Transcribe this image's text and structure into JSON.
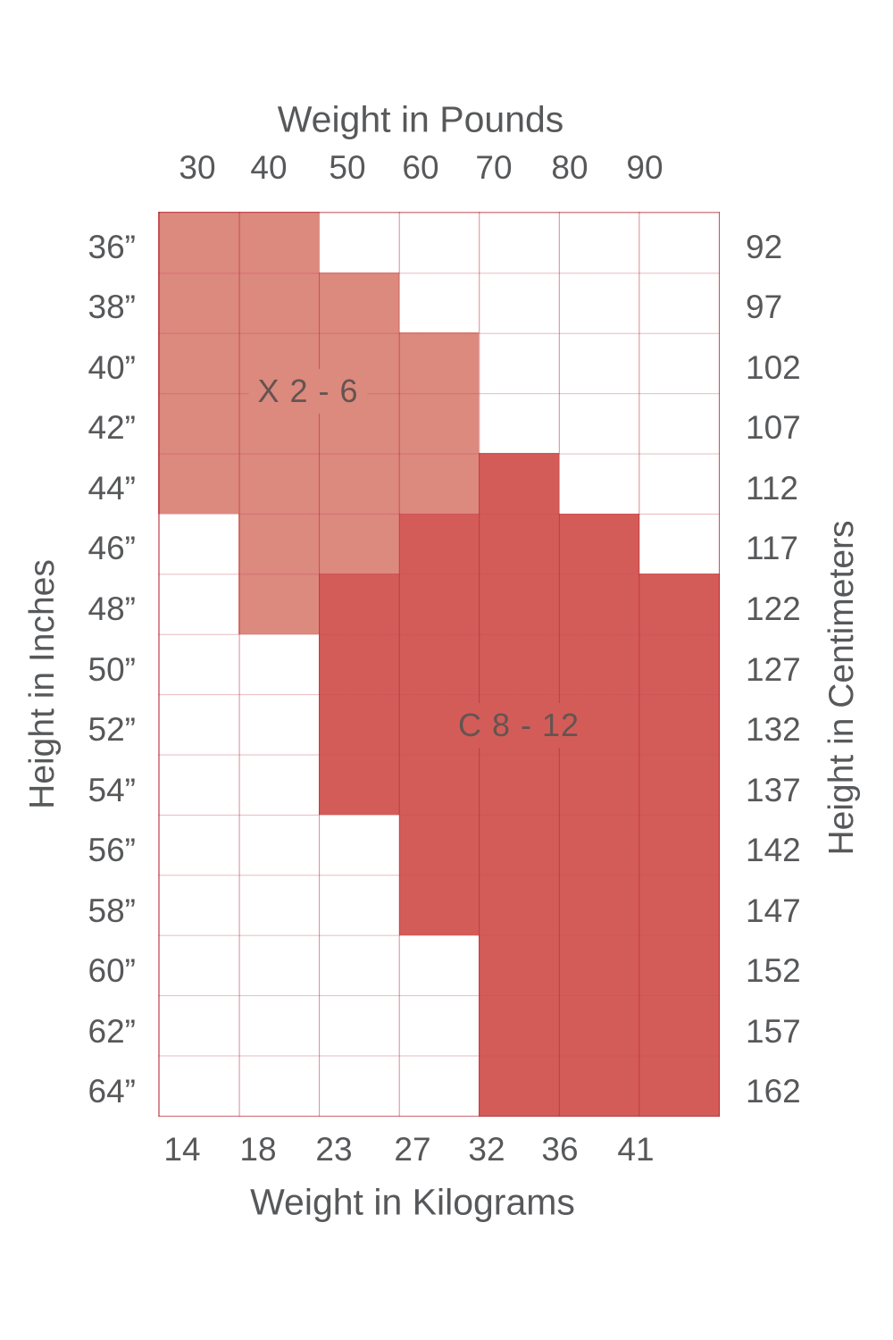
{
  "chart_data": {
    "type": "heatmap",
    "titles": {
      "top": "Weight in Pounds",
      "bottom": "Weight in Kilograms",
      "left": "Height in Inches",
      "right": "Height in Centimeters"
    },
    "x_axis_top_pounds": [
      "30",
      "40",
      "50",
      "60",
      "70",
      "80",
      "90"
    ],
    "x_axis_bottom_kilograms": [
      "14",
      "18",
      "23",
      "27",
      "32",
      "36",
      "41"
    ],
    "y_axis_left_inches": [
      "36”",
      "38”",
      "40”",
      "42”",
      "44”",
      "46”",
      "48”",
      "50”",
      "52”",
      "54”",
      "56”",
      "58”",
      "60”",
      "62”",
      "64”"
    ],
    "y_axis_right_centimeters": [
      "92",
      "97",
      "102",
      "107",
      "112",
      "117",
      "122",
      "127",
      "132",
      "137",
      "142",
      "147",
      "152",
      "157",
      "162"
    ],
    "regions": [
      {
        "label": "X 2 - 6",
        "shade": "light"
      },
      {
        "label": "C 8 - 12",
        "shade": "dark"
      }
    ],
    "cell_shades_by_row": [
      "LLWWWWW",
      "LLLWWWW",
      "LLLLWWW",
      "LLLLWWW",
      "LLLLDWW",
      "WLLDDDW",
      "WLDDDDD",
      "WWDDDDD",
      "WWDDDDD",
      "WWDDDDD",
      "WWWDDDD",
      "WWWDDDD",
      "WWWWDDD",
      "WWWWDDD",
      "WWWWDDD"
    ],
    "shade_key": {
      "L": "light region (X 2 - 6)",
      "D": "dark region (C 8 - 12)",
      "W": "white"
    },
    "colors": {
      "light_fill": "#DC897E",
      "dark_fill": "#D35C59",
      "axis_text": "#57585A",
      "region_text": "#645450",
      "grid_line_vertical": "rgba(178,22,40,0.50)",
      "grid_line_horizontal": "rgba(195,75,90,0.38)"
    }
  }
}
